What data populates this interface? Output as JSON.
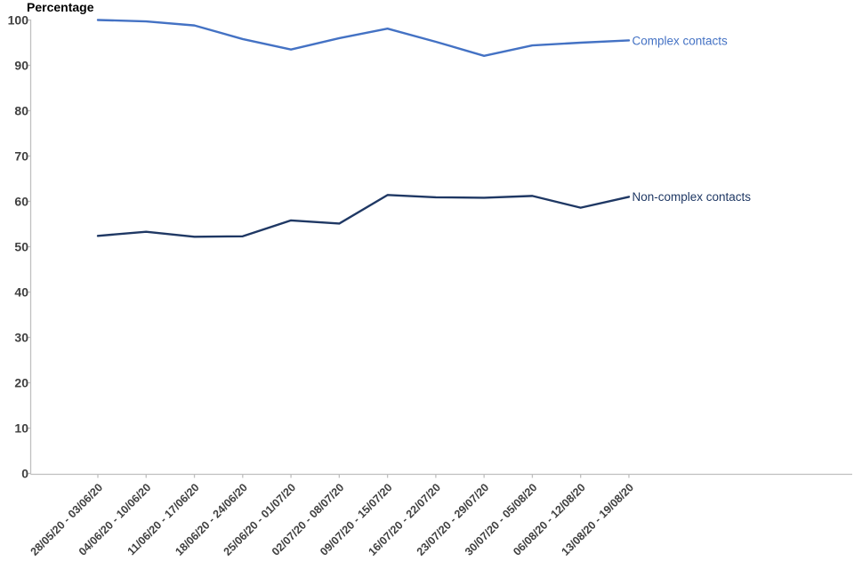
{
  "chart_data": {
    "type": "line",
    "title": "Percentage",
    "xlabel": "",
    "ylabel": "Percentage",
    "categories": [
      "28/05/20 - 03/06/20",
      "04/06/20 - 10/06/20",
      "11/06/20 - 17/06/20",
      "18/06/20 - 24/06/20",
      "25/06/20 - 01/07/20",
      "02/07/20 - 08/07/20",
      "09/07/20 - 15/07/20",
      "16/07/20 - 22/07/20",
      "23/07/20 - 29/07/20",
      "30/07/20 - 05/08/20",
      "06/08/20 - 12/08/20",
      "13/08/20 - 19/08/20"
    ],
    "series": [
      {
        "name": "Complex contacts",
        "color": "#4472C4",
        "values": [
          100,
          99.7,
          98.8,
          95.8,
          93.5,
          96.0,
          98.1,
          95.2,
          92.1,
          94.4,
          95.0,
          95.5
        ]
      },
      {
        "name": "Non-complex contacts",
        "color": "#1F3864",
        "values": [
          52.4,
          53.3,
          52.2,
          52.3,
          55.8,
          55.1,
          61.4,
          60.9,
          60.8,
          61.2,
          58.6,
          61.0
        ]
      }
    ],
    "ylim": [
      0,
      100
    ],
    "yticks": [
      0,
      10,
      20,
      30,
      40,
      50,
      60,
      70,
      80,
      90,
      100
    ],
    "grid": false,
    "legend_position": "line-end-labels",
    "axis_color": "#BFBFBF",
    "tick_label_color": "#404040"
  }
}
